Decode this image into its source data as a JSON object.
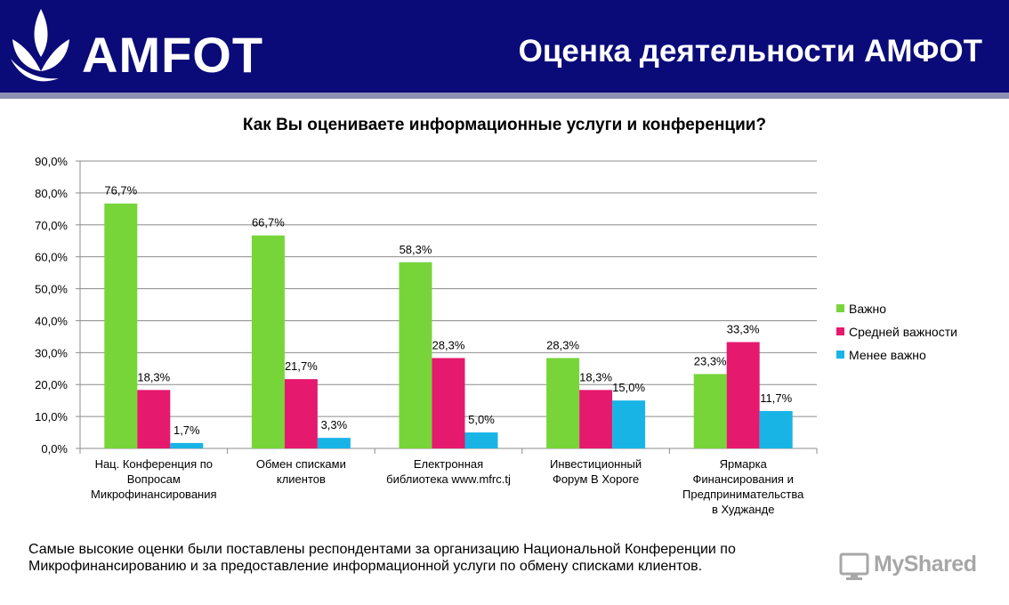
{
  "header": {
    "logo_text": "AMFOT",
    "title": "Оценка деятельности АМФОТ"
  },
  "colors": {
    "header_bg": "#0a0a78",
    "important": "#77d53a",
    "medium": "#e5196e",
    "less": "#19b4e6"
  },
  "chart_data": {
    "type": "bar",
    "title": "Как Вы оцениваете информационные услуги и конференции?",
    "categories": [
      [
        "Нац. Конференция по",
        "Вопросам",
        "Микрофинансирования"
      ],
      [
        "Обмен списками",
        "клиентов"
      ],
      [
        "Електронная",
        "библиотека www.mfrc.tj"
      ],
      [
        "Инвестиционный",
        "Форум В Хороге"
      ],
      [
        "Ярмарка",
        "Финансирования и",
        "Предпринимательства",
        "в Худжанде"
      ]
    ],
    "series": [
      {
        "name": "Важно",
        "color": "#77d53a",
        "values": [
          76.7,
          66.7,
          58.3,
          28.3,
          23.3
        ],
        "labels": [
          "76,7%",
          "66,7%",
          "58,3%",
          "28,3%",
          "23,3%"
        ]
      },
      {
        "name": "Средней важности",
        "color": "#e5196e",
        "values": [
          18.3,
          21.7,
          28.3,
          18.3,
          33.3
        ],
        "labels": [
          "18,3%",
          "21,7%",
          "28,3%",
          "18,3%",
          "33,3%"
        ]
      },
      {
        "name": "Менее важно",
        "color": "#19b4e6",
        "values": [
          1.7,
          3.3,
          5.0,
          15.0,
          11.7
        ],
        "labels": [
          "1,7%",
          "3,3%",
          "5,0%",
          "15,0%",
          "11,7%"
        ]
      }
    ],
    "ylim": [
      0,
      90
    ],
    "y_ticks": [
      0,
      10,
      20,
      30,
      40,
      50,
      60,
      70,
      80,
      90
    ],
    "y_tick_labels": [
      "0,0%",
      "10,0%",
      "20,0%",
      "30,0%",
      "40,0%",
      "50,0%",
      "60,0%",
      "70,0%",
      "80,0%",
      "90,0%"
    ],
    "grid": true,
    "legend": "right"
  },
  "summary": "Самые высокие оценки были поставлены респондентами за организацию Национальной Конференции по Микрофинансированию и за предоставление информационной услуги по обмену списками клиентов.",
  "watermark": "MyShared"
}
